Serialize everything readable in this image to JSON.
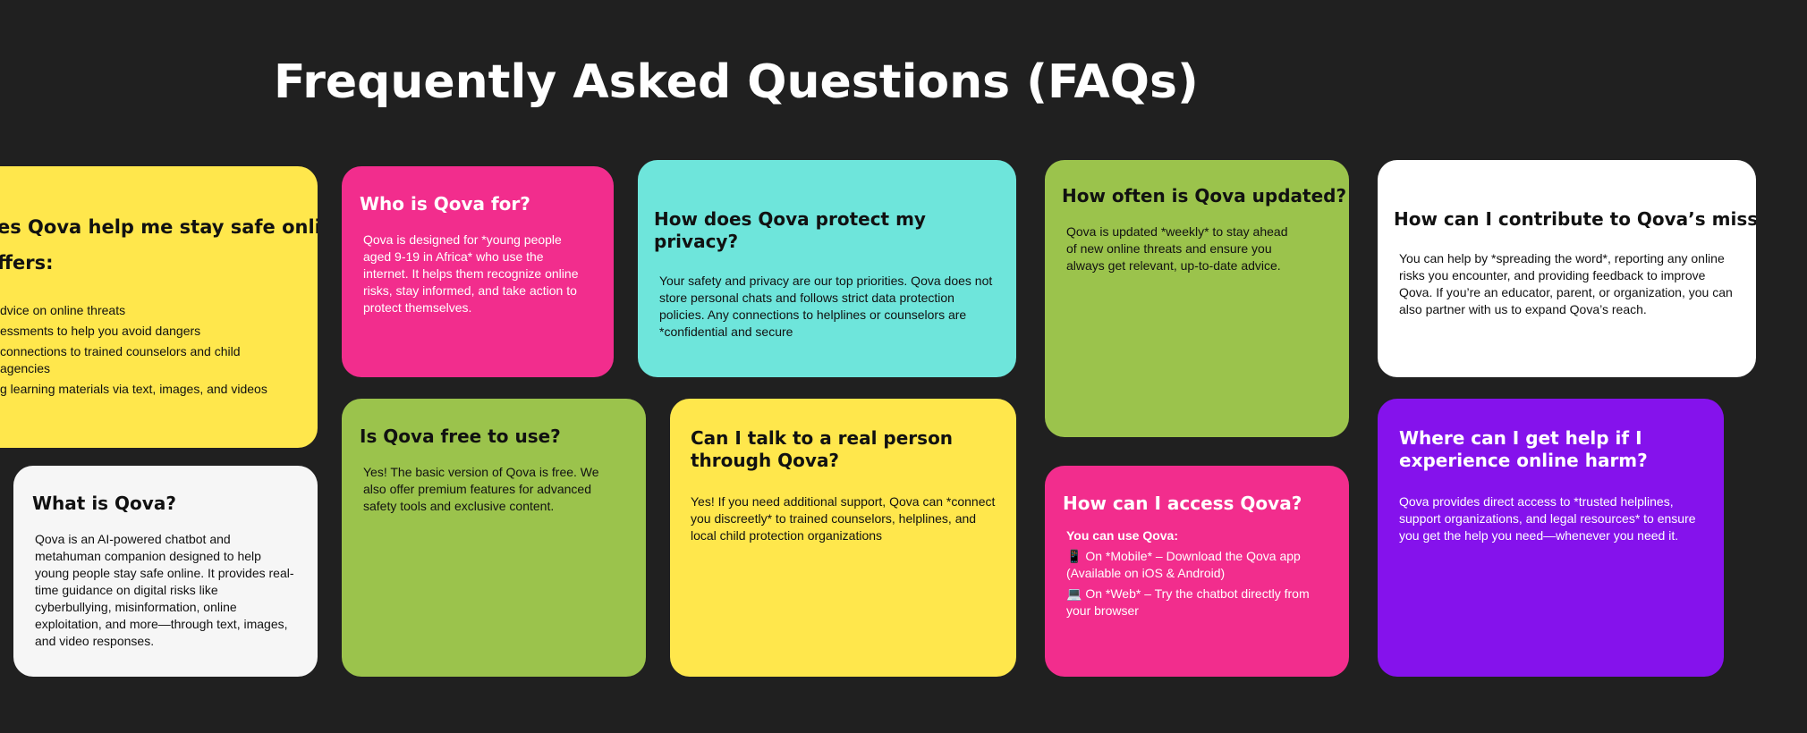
{
  "page_title": "Frequently Asked Questions (FAQs)",
  "faqs": {
    "safe_online": {
      "question": "es Qova help me stay safe online?*",
      "subheading": "ffers:",
      "items": [
        "dvice on online threats",
        "essments to help you avoid dangers",
        "connections to trained counselors and child",
        "agencies",
        "g learning materials via text, images, and videos"
      ]
    },
    "what_is": {
      "question": "What is Qova?",
      "answer": "Qova is an AI-powered chatbot and metahuman companion designed to help young people stay safe online. It provides real-time guidance on digital risks like cyberbullying, misinformation, online exploitation, and more—through text, images, and video responses."
    },
    "who_for": {
      "question": "Who is Qova for?",
      "answer": "Qova is designed for *young people aged 9-19 in Africa* who use the internet. It helps them recognize online risks, stay informed, and take action to protect themselves."
    },
    "free": {
      "question": "Is Qova free to use?",
      "answer": "Yes! The basic version of Qova is free. We also offer premium features for advanced safety tools and exclusive content."
    },
    "privacy": {
      "question": "How does Qova protect my privacy?",
      "answer": "Your safety and privacy are our top priorities. Qova does not store personal chats and follows strict data protection policies. Any connections to helplines or counselors are *confidential and secure"
    },
    "real_person": {
      "question": "Can I talk to a real person through Qova?",
      "answer": "Yes! If you need additional support, Qova can *connect you discreetly* to trained counselors, helplines, and local child protection organizations"
    },
    "updated": {
      "question": "How often is Qova updated?",
      "answer": "Qova is updated *weekly* to stay ahead of new online threats and ensure you always get relevant, up-to-date advice."
    },
    "access": {
      "question": "How can I access Qova?",
      "lead": "You can use Qova:",
      "mobile": "📱 On *Mobile* – Download the Qova app (Available on iOS & Android)",
      "web": "💻 On *Web* – Try the chatbot directly from your browser"
    },
    "contribute": {
      "question": "How can I contribute to Qova’s mission?",
      "answer": "You can help by *spreading the word*, reporting any online risks you encounter, and providing feedback to improve Qova. If you’re an educator, parent, or organization, you can also partner with us to expand Qova’s reach."
    },
    "help_harm": {
      "question": "Where can I get help if I experience online harm?",
      "answer": "Qova provides direct access to *trusted helplines, support organizations, and legal resources* to ensure you get the help you need—whenever you need it."
    }
  },
  "colors": {
    "background": "#202020",
    "yellow": "#FFE74C",
    "pink": "#F22D8D",
    "cyan": "#6EE5DB",
    "green": "#9BC34C",
    "white": "#FFFFFF",
    "purple": "#8512EC"
  }
}
